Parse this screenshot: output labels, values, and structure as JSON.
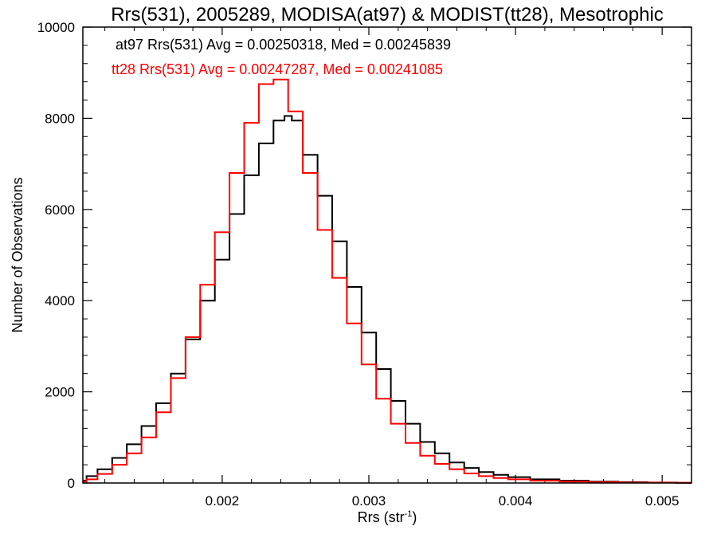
{
  "chart_data": {
    "type": "line",
    "title": "Rrs(531), 2005289, MODISA(at97) & MODIST(tt28), Mesotrophic",
    "xlabel": "Rrs (str",
    "xlabel_sup": "-1",
    "xlabel_close": ")",
    "ylabel": "Number of Observations",
    "xlim": [
      0.00105,
      0.0052
    ],
    "ylim": [
      0,
      10000
    ],
    "xticks": [
      {
        "value": 0.002,
        "label": "0.002"
      },
      {
        "value": 0.003,
        "label": "0.003"
      },
      {
        "value": 0.004,
        "label": "0.004"
      },
      {
        "value": 0.005,
        "label": "0.005"
      }
    ],
    "yticks": [
      {
        "value": 0,
        "label": "0"
      },
      {
        "value": 2000,
        "label": "2000"
      },
      {
        "value": 4000,
        "label": "4000"
      },
      {
        "value": 6000,
        "label": "6000"
      },
      {
        "value": 8000,
        "label": "8000"
      },
      {
        "value": 10000,
        "label": "10000"
      }
    ],
    "annotations": [
      {
        "text": "at97 Rrs(531) Avg = 0.00250318, Med = 0.00245839",
        "color": "#000000"
      },
      {
        "text": "tt28 Rrs(531) Avg = 0.00247287, Med = 0.00241085",
        "color": "#ff0000"
      }
    ],
    "series": [
      {
        "color": "#000000",
        "x": [
          0.00105,
          0.0011,
          0.0012,
          0.0013,
          0.0014,
          0.0015,
          0.0016,
          0.0017,
          0.0018,
          0.0019,
          0.002,
          0.0021,
          0.0022,
          0.0023,
          0.0024,
          0.00245,
          0.0025,
          0.0026,
          0.0027,
          0.0028,
          0.0029,
          0.003,
          0.0031,
          0.0032,
          0.0033,
          0.0034,
          0.0035,
          0.0036,
          0.0037,
          0.0038,
          0.0039,
          0.004,
          0.0042,
          0.0044,
          0.0046,
          0.0048,
          0.005,
          0.0052
        ],
        "y": [
          50,
          150,
          300,
          550,
          850,
          1250,
          1750,
          2400,
          3150,
          4000,
          4900,
          5900,
          6750,
          7450,
          7950,
          8050,
          7950,
          7200,
          6300,
          5300,
          4300,
          3300,
          2500,
          1800,
          1300,
          900,
          650,
          450,
          330,
          240,
          180,
          130,
          80,
          50,
          30,
          20,
          10,
          5
        ]
      },
      {
        "color": "#ff0000",
        "x": [
          0.00105,
          0.0011,
          0.0012,
          0.0013,
          0.0014,
          0.0015,
          0.0016,
          0.0017,
          0.0018,
          0.0019,
          0.002,
          0.0021,
          0.0022,
          0.0023,
          0.0024,
          0.0025,
          0.0026,
          0.0027,
          0.0028,
          0.0029,
          0.003,
          0.0031,
          0.0032,
          0.0033,
          0.0034,
          0.0035,
          0.0036,
          0.0037,
          0.0038,
          0.0039,
          0.004,
          0.0042,
          0.0044,
          0.0046,
          0.0048,
          0.005,
          0.0052
        ],
        "y": [
          30,
          80,
          200,
          400,
          650,
          1000,
          1550,
          2300,
          3200,
          4350,
          5500,
          6800,
          7900,
          8750,
          8850,
          8150,
          6800,
          5550,
          4500,
          3500,
          2600,
          1850,
          1300,
          880,
          600,
          420,
          300,
          210,
          150,
          110,
          80,
          50,
          30,
          20,
          10,
          8,
          5
        ]
      }
    ]
  }
}
